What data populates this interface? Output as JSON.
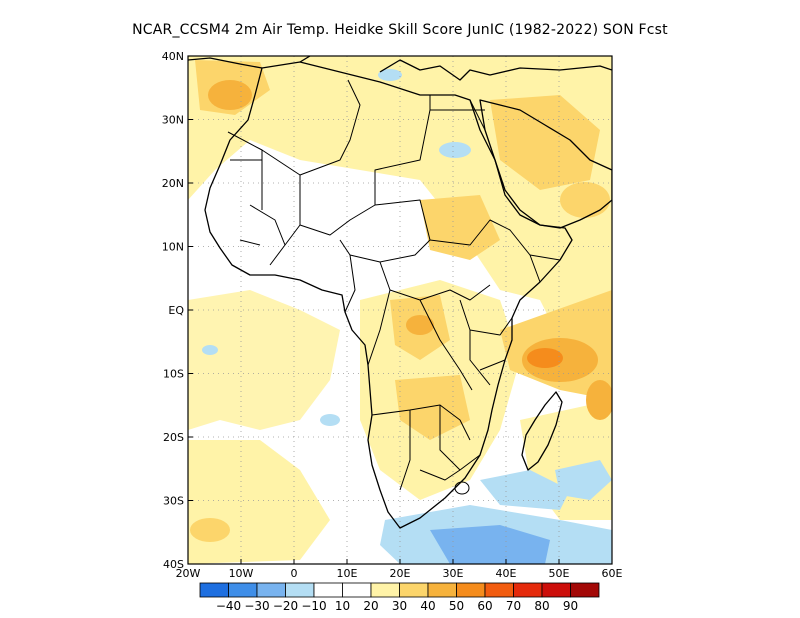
{
  "title": "NCAR_CCSM4  2m Air Temp. Heidke Skill Score JunIC (1982-2022) SON Fcst",
  "map": {
    "lon_range": [
      -20,
      60
    ],
    "lat_range": [
      -40,
      40
    ],
    "x_ticks": [
      "20W",
      "10W",
      "0",
      "10E",
      "20E",
      "30E",
      "40E",
      "50E",
      "60E"
    ],
    "y_ticks": [
      "40N",
      "30N",
      "20N",
      "10N",
      "EQ",
      "10S",
      "20S",
      "30S",
      "40S"
    ],
    "gridlines": "dotted"
  },
  "colorbar": {
    "labels": [
      "-40",
      "-30",
      "-20",
      "-10",
      "10",
      "20",
      "30",
      "40",
      "50",
      "60",
      "70",
      "80",
      "90"
    ],
    "colors": [
      "#1e6fe0",
      "#3f8ee8",
      "#78b3ef",
      "#b4def4",
      "#ffffff",
      "#fff3a8",
      "#fcd56b",
      "#f6b23c",
      "#f58c1c",
      "#f25c0f",
      "#e52a0b",
      "#cc0e0a",
      "#a30806"
    ]
  }
}
